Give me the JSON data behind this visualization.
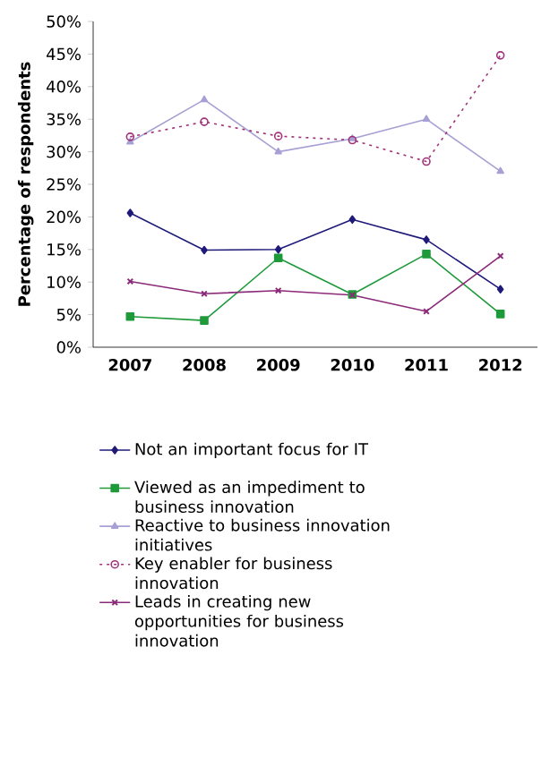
{
  "chart_data": {
    "type": "line",
    "ylabel": "Percentage of respondents",
    "categories": [
      "2007",
      "2008",
      "2009",
      "2010",
      "2011",
      "2012"
    ],
    "ylim": [
      0,
      50
    ],
    "yticks": [
      {
        "value": 0,
        "label": "0%"
      },
      {
        "value": 5,
        "label": "5%"
      },
      {
        "value": 10,
        "label": "10%"
      },
      {
        "value": 15,
        "label": "15%"
      },
      {
        "value": 20,
        "label": "20%"
      },
      {
        "value": 25,
        "label": "25%"
      },
      {
        "value": 30,
        "label": "30%"
      },
      {
        "value": 35,
        "label": "35%"
      },
      {
        "value": 40,
        "label": "40%"
      },
      {
        "value": 45,
        "label": "45%"
      },
      {
        "value": 50,
        "label": "50%"
      }
    ],
    "grid": false,
    "legend": "bottom",
    "series": [
      {
        "name": "Not an important focus for IT",
        "color": "#1f1a7a",
        "marker": "diamond",
        "line_style": "solid",
        "values": [
          20.6,
          14.9,
          15.0,
          19.6,
          16.5,
          8.9
        ]
      },
      {
        "name": "Viewed as an impediment to business innovation",
        "color": "#1e9a3a",
        "marker": "square",
        "line_style": "solid",
        "values": [
          4.7,
          4.1,
          13.7,
          8.1,
          14.3,
          5.1
        ]
      },
      {
        "name": "Reactive to business innovation initiatives",
        "color": "#a6a0d4",
        "marker": "triangle",
        "line_style": "solid",
        "values": [
          31.5,
          38.0,
          30.0,
          32.0,
          35.0,
          27.0
        ]
      },
      {
        "name": "Key enabler for business innovation",
        "color": "#a0307a",
        "marker": "circle",
        "line_style": "dotted",
        "values": [
          32.3,
          34.6,
          32.4,
          31.8,
          28.5,
          44.8
        ]
      },
      {
        "name": "Leads in creating new opportunities for business innovation",
        "color": "#8c2a7a",
        "marker": "cross",
        "line_style": "solid",
        "values": [
          10.1,
          8.2,
          8.7,
          8.0,
          5.5,
          14.0
        ]
      }
    ]
  }
}
